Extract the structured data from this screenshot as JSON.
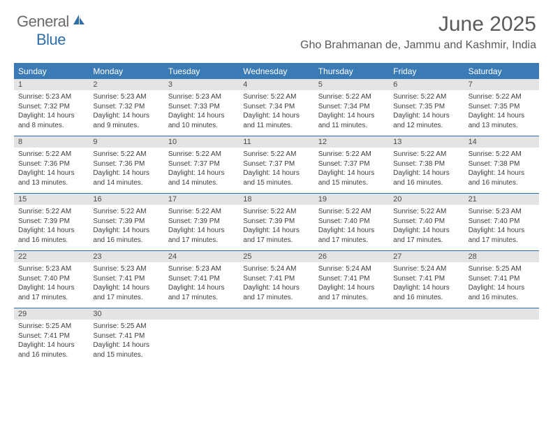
{
  "logo": {
    "text1": "General",
    "text2": "Blue"
  },
  "title": "June 2025",
  "location": "Gho Brahmanan de, Jammu and Kashmir, India",
  "colors": {
    "header_bg": "#3a7ab5",
    "header_text": "#ffffff",
    "daynum_bg": "#e4e4e4",
    "border": "#2f6fa8",
    "body_text": "#3d3d3d",
    "title_text": "#5a5a5a"
  },
  "weekdays": [
    "Sunday",
    "Monday",
    "Tuesday",
    "Wednesday",
    "Thursday",
    "Friday",
    "Saturday"
  ],
  "weeks": [
    [
      {
        "n": "1",
        "sr": "Sunrise: 5:23 AM",
        "ss": "Sunset: 7:32 PM",
        "d1": "Daylight: 14 hours",
        "d2": "and 8 minutes."
      },
      {
        "n": "2",
        "sr": "Sunrise: 5:23 AM",
        "ss": "Sunset: 7:32 PM",
        "d1": "Daylight: 14 hours",
        "d2": "and 9 minutes."
      },
      {
        "n": "3",
        "sr": "Sunrise: 5:23 AM",
        "ss": "Sunset: 7:33 PM",
        "d1": "Daylight: 14 hours",
        "d2": "and 10 minutes."
      },
      {
        "n": "4",
        "sr": "Sunrise: 5:22 AM",
        "ss": "Sunset: 7:34 PM",
        "d1": "Daylight: 14 hours",
        "d2": "and 11 minutes."
      },
      {
        "n": "5",
        "sr": "Sunrise: 5:22 AM",
        "ss": "Sunset: 7:34 PM",
        "d1": "Daylight: 14 hours",
        "d2": "and 11 minutes."
      },
      {
        "n": "6",
        "sr": "Sunrise: 5:22 AM",
        "ss": "Sunset: 7:35 PM",
        "d1": "Daylight: 14 hours",
        "d2": "and 12 minutes."
      },
      {
        "n": "7",
        "sr": "Sunrise: 5:22 AM",
        "ss": "Sunset: 7:35 PM",
        "d1": "Daylight: 14 hours",
        "d2": "and 13 minutes."
      }
    ],
    [
      {
        "n": "8",
        "sr": "Sunrise: 5:22 AM",
        "ss": "Sunset: 7:36 PM",
        "d1": "Daylight: 14 hours",
        "d2": "and 13 minutes."
      },
      {
        "n": "9",
        "sr": "Sunrise: 5:22 AM",
        "ss": "Sunset: 7:36 PM",
        "d1": "Daylight: 14 hours",
        "d2": "and 14 minutes."
      },
      {
        "n": "10",
        "sr": "Sunrise: 5:22 AM",
        "ss": "Sunset: 7:37 PM",
        "d1": "Daylight: 14 hours",
        "d2": "and 14 minutes."
      },
      {
        "n": "11",
        "sr": "Sunrise: 5:22 AM",
        "ss": "Sunset: 7:37 PM",
        "d1": "Daylight: 14 hours",
        "d2": "and 15 minutes."
      },
      {
        "n": "12",
        "sr": "Sunrise: 5:22 AM",
        "ss": "Sunset: 7:37 PM",
        "d1": "Daylight: 14 hours",
        "d2": "and 15 minutes."
      },
      {
        "n": "13",
        "sr": "Sunrise: 5:22 AM",
        "ss": "Sunset: 7:38 PM",
        "d1": "Daylight: 14 hours",
        "d2": "and 16 minutes."
      },
      {
        "n": "14",
        "sr": "Sunrise: 5:22 AM",
        "ss": "Sunset: 7:38 PM",
        "d1": "Daylight: 14 hours",
        "d2": "and 16 minutes."
      }
    ],
    [
      {
        "n": "15",
        "sr": "Sunrise: 5:22 AM",
        "ss": "Sunset: 7:39 PM",
        "d1": "Daylight: 14 hours",
        "d2": "and 16 minutes."
      },
      {
        "n": "16",
        "sr": "Sunrise: 5:22 AM",
        "ss": "Sunset: 7:39 PM",
        "d1": "Daylight: 14 hours",
        "d2": "and 16 minutes."
      },
      {
        "n": "17",
        "sr": "Sunrise: 5:22 AM",
        "ss": "Sunset: 7:39 PM",
        "d1": "Daylight: 14 hours",
        "d2": "and 17 minutes."
      },
      {
        "n": "18",
        "sr": "Sunrise: 5:22 AM",
        "ss": "Sunset: 7:39 PM",
        "d1": "Daylight: 14 hours",
        "d2": "and 17 minutes."
      },
      {
        "n": "19",
        "sr": "Sunrise: 5:22 AM",
        "ss": "Sunset: 7:40 PM",
        "d1": "Daylight: 14 hours",
        "d2": "and 17 minutes."
      },
      {
        "n": "20",
        "sr": "Sunrise: 5:22 AM",
        "ss": "Sunset: 7:40 PM",
        "d1": "Daylight: 14 hours",
        "d2": "and 17 minutes."
      },
      {
        "n": "21",
        "sr": "Sunrise: 5:23 AM",
        "ss": "Sunset: 7:40 PM",
        "d1": "Daylight: 14 hours",
        "d2": "and 17 minutes."
      }
    ],
    [
      {
        "n": "22",
        "sr": "Sunrise: 5:23 AM",
        "ss": "Sunset: 7:40 PM",
        "d1": "Daylight: 14 hours",
        "d2": "and 17 minutes."
      },
      {
        "n": "23",
        "sr": "Sunrise: 5:23 AM",
        "ss": "Sunset: 7:41 PM",
        "d1": "Daylight: 14 hours",
        "d2": "and 17 minutes."
      },
      {
        "n": "24",
        "sr": "Sunrise: 5:23 AM",
        "ss": "Sunset: 7:41 PM",
        "d1": "Daylight: 14 hours",
        "d2": "and 17 minutes."
      },
      {
        "n": "25",
        "sr": "Sunrise: 5:24 AM",
        "ss": "Sunset: 7:41 PM",
        "d1": "Daylight: 14 hours",
        "d2": "and 17 minutes."
      },
      {
        "n": "26",
        "sr": "Sunrise: 5:24 AM",
        "ss": "Sunset: 7:41 PM",
        "d1": "Daylight: 14 hours",
        "d2": "and 17 minutes."
      },
      {
        "n": "27",
        "sr": "Sunrise: 5:24 AM",
        "ss": "Sunset: 7:41 PM",
        "d1": "Daylight: 14 hours",
        "d2": "and 16 minutes."
      },
      {
        "n": "28",
        "sr": "Sunrise: 5:25 AM",
        "ss": "Sunset: 7:41 PM",
        "d1": "Daylight: 14 hours",
        "d2": "and 16 minutes."
      }
    ],
    [
      {
        "n": "29",
        "sr": "Sunrise: 5:25 AM",
        "ss": "Sunset: 7:41 PM",
        "d1": "Daylight: 14 hours",
        "d2": "and 16 minutes."
      },
      {
        "n": "30",
        "sr": "Sunrise: 5:25 AM",
        "ss": "Sunset: 7:41 PM",
        "d1": "Daylight: 14 hours",
        "d2": "and 15 minutes."
      },
      {
        "empty": true
      },
      {
        "empty": true
      },
      {
        "empty": true
      },
      {
        "empty": true
      },
      {
        "empty": true
      }
    ]
  ]
}
